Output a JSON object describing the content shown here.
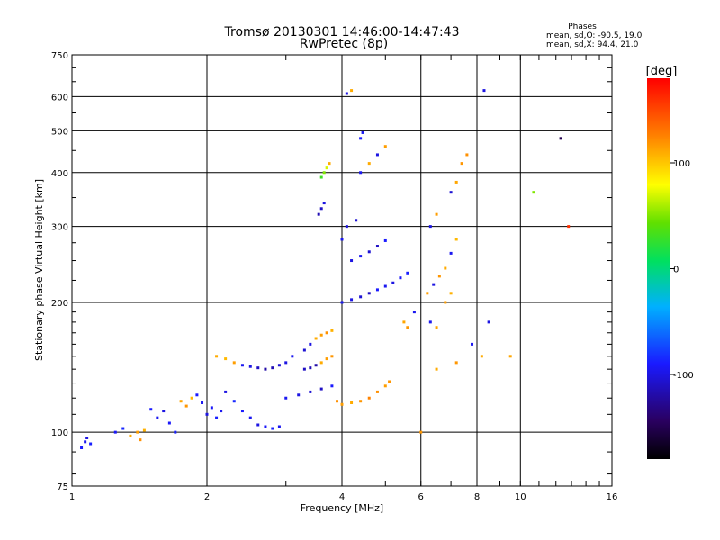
{
  "chart_data": {
    "type": "scatter",
    "title": "Tromsø 20130301 14:46:00-14:47:43",
    "subtitle": "RwPretec (8p)",
    "xlabel": "Frequency [MHz]",
    "ylabel": "Stationary phase Virtual Height [km]",
    "x_scale": "log",
    "y_scale": "log",
    "xlim": [
      1,
      16
    ],
    "ylim": [
      75,
      750
    ],
    "x_ticks": [
      1,
      2,
      4,
      6,
      8,
      10,
      16
    ],
    "x_tick_labels": [
      "1",
      "2",
      "4",
      "6",
      "8",
      "10",
      "16"
    ],
    "y_ticks": [
      75,
      100,
      200,
      300,
      400,
      500,
      600,
      750
    ],
    "y_tick_labels": [
      "75",
      "100",
      "200",
      "300",
      "400",
      "500",
      "600",
      "750"
    ],
    "grid": true,
    "legend": {
      "title": "Phases",
      "lines": [
        "mean, sd,O: -90.5, 19.0",
        "mean, sd,X:  94.4, 21.0"
      ],
      "placement": "top-right"
    },
    "colorbar": {
      "label": "[deg]",
      "range": [
        -180,
        180
      ],
      "ticks": [
        100,
        0,
        -100
      ],
      "tick_labels": [
        "100",
        "0",
        "-100"
      ],
      "colormap": "rainbow"
    },
    "series": [
      {
        "points": [
          [
            1.05,
            92,
            -90
          ],
          [
            1.07,
            95,
            -95
          ],
          [
            1.08,
            97,
            -100
          ],
          [
            1.1,
            94,
            -88
          ],
          [
            1.25,
            100,
            -92
          ],
          [
            1.3,
            102,
            -85
          ],
          [
            1.35,
            98,
            110
          ],
          [
            1.4,
            100,
            115
          ],
          [
            1.42,
            96,
            120
          ],
          [
            1.45,
            101,
            108
          ],
          [
            1.5,
            113,
            -90
          ],
          [
            1.55,
            108,
            -95
          ],
          [
            1.6,
            112,
            -100
          ],
          [
            1.65,
            105,
            -92
          ],
          [
            1.7,
            100,
            -88
          ],
          [
            1.75,
            118,
            112
          ],
          [
            1.8,
            115,
            118
          ],
          [
            1.85,
            120,
            105
          ],
          [
            1.9,
            122,
            -90
          ],
          [
            1.95,
            117,
            -95
          ],
          [
            2.0,
            110,
            -100
          ],
          [
            2.05,
            114,
            -92
          ],
          [
            2.1,
            108,
            -88
          ],
          [
            2.15,
            112,
            -95
          ],
          [
            2.2,
            124,
            -100
          ],
          [
            2.3,
            118,
            -85
          ],
          [
            2.4,
            112,
            -90
          ],
          [
            2.5,
            108,
            -95
          ],
          [
            2.6,
            104,
            -100
          ],
          [
            2.7,
            103,
            -92
          ],
          [
            2.8,
            102,
            -88
          ],
          [
            2.9,
            103,
            -95
          ],
          [
            2.1,
            150,
            110
          ],
          [
            2.2,
            148,
            105
          ],
          [
            2.3,
            145,
            115
          ],
          [
            2.4,
            143,
            -95
          ],
          [
            2.5,
            142,
            -100
          ],
          [
            2.6,
            141,
            -110
          ],
          [
            2.7,
            140,
            -120
          ],
          [
            2.8,
            141,
            -115
          ],
          [
            2.9,
            143,
            -105
          ],
          [
            3.0,
            145,
            -100
          ],
          [
            3.1,
            150,
            -95
          ],
          [
            3.3,
            155,
            -105
          ],
          [
            3.4,
            160,
            -100
          ],
          [
            3.5,
            165,
            110
          ],
          [
            3.6,
            168,
            115
          ],
          [
            3.7,
            170,
            120
          ],
          [
            3.8,
            172,
            108
          ],
          [
            3.3,
            140,
            -110
          ],
          [
            3.4,
            141,
            -115
          ],
          [
            3.5,
            143,
            -120
          ],
          [
            3.6,
            145,
            110
          ],
          [
            3.7,
            148,
            115
          ],
          [
            3.8,
            150,
            118
          ],
          [
            3.0,
            120,
            -95
          ],
          [
            3.2,
            122,
            -100
          ],
          [
            3.4,
            124,
            -105
          ],
          [
            3.6,
            126,
            -110
          ],
          [
            3.8,
            128,
            -90
          ],
          [
            3.9,
            118,
            120
          ],
          [
            4.0,
            116,
            115
          ],
          [
            4.2,
            117,
            110
          ],
          [
            4.4,
            118,
            118
          ],
          [
            4.6,
            120,
            125
          ],
          [
            4.8,
            124,
            120
          ],
          [
            5.0,
            128,
            115
          ],
          [
            5.1,
            131,
            118
          ],
          [
            4.0,
            200,
            -95
          ],
          [
            4.2,
            203,
            -100
          ],
          [
            4.4,
            206,
            -105
          ],
          [
            4.6,
            210,
            -110
          ],
          [
            4.8,
            214,
            -90
          ],
          [
            5.0,
            218,
            -95
          ],
          [
            5.2,
            222,
            -100
          ],
          [
            5.4,
            228,
            -92
          ],
          [
            5.6,
            234,
            -88
          ],
          [
            4.2,
            250,
            -100
          ],
          [
            4.4,
            256,
            -95
          ],
          [
            4.6,
            262,
            -105
          ],
          [
            4.8,
            270,
            -110
          ],
          [
            5.0,
            278,
            -90
          ],
          [
            4.0,
            280,
            -95
          ],
          [
            4.1,
            300,
            -100
          ],
          [
            4.3,
            310,
            -105
          ],
          [
            3.6,
            330,
            -110
          ],
          [
            3.55,
            320,
            -115
          ],
          [
            3.65,
            340,
            -100
          ],
          [
            3.6,
            390,
            30
          ],
          [
            3.65,
            400,
            50
          ],
          [
            3.7,
            410,
            70
          ],
          [
            3.75,
            420,
            110
          ],
          [
            4.4,
            400,
            -95
          ],
          [
            4.6,
            420,
            110
          ],
          [
            4.8,
            440,
            -100
          ],
          [
            5.0,
            460,
            115
          ],
          [
            4.4,
            480,
            -90
          ],
          [
            4.45,
            495,
            -95
          ],
          [
            4.1,
            610,
            -100
          ],
          [
            4.2,
            620,
            110
          ],
          [
            5.5,
            180,
            112
          ],
          [
            5.6,
            175,
            118
          ],
          [
            5.8,
            190,
            -95
          ],
          [
            6.2,
            210,
            115
          ],
          [
            6.4,
            220,
            -100
          ],
          [
            6.6,
            230,
            118
          ],
          [
            6.8,
            240,
            110
          ],
          [
            7.0,
            260,
            -95
          ],
          [
            7.2,
            280,
            105
          ],
          [
            6.3,
            300,
            -100
          ],
          [
            6.5,
            320,
            115
          ],
          [
            7.0,
            360,
            -105
          ],
          [
            7.2,
            380,
            112
          ],
          [
            7.4,
            420,
            118
          ],
          [
            6.3,
            180,
            -95
          ],
          [
            6.5,
            175,
            112
          ],
          [
            6.8,
            200,
            115
          ],
          [
            7.0,
            210,
            108
          ],
          [
            6.5,
            140,
            110
          ],
          [
            7.2,
            145,
            118
          ],
          [
            7.8,
            160,
            -95
          ],
          [
            8.2,
            150,
            110
          ],
          [
            8.5,
            180,
            -100
          ],
          [
            7.6,
            440,
            120
          ],
          [
            8.3,
            620,
            -100
          ],
          [
            12.3,
            480,
            -150
          ],
          [
            12.8,
            300,
            160
          ],
          [
            10.7,
            360,
            50
          ],
          [
            9.5,
            150,
            112
          ],
          [
            6.0,
            100,
            118
          ]
        ]
      }
    ]
  }
}
